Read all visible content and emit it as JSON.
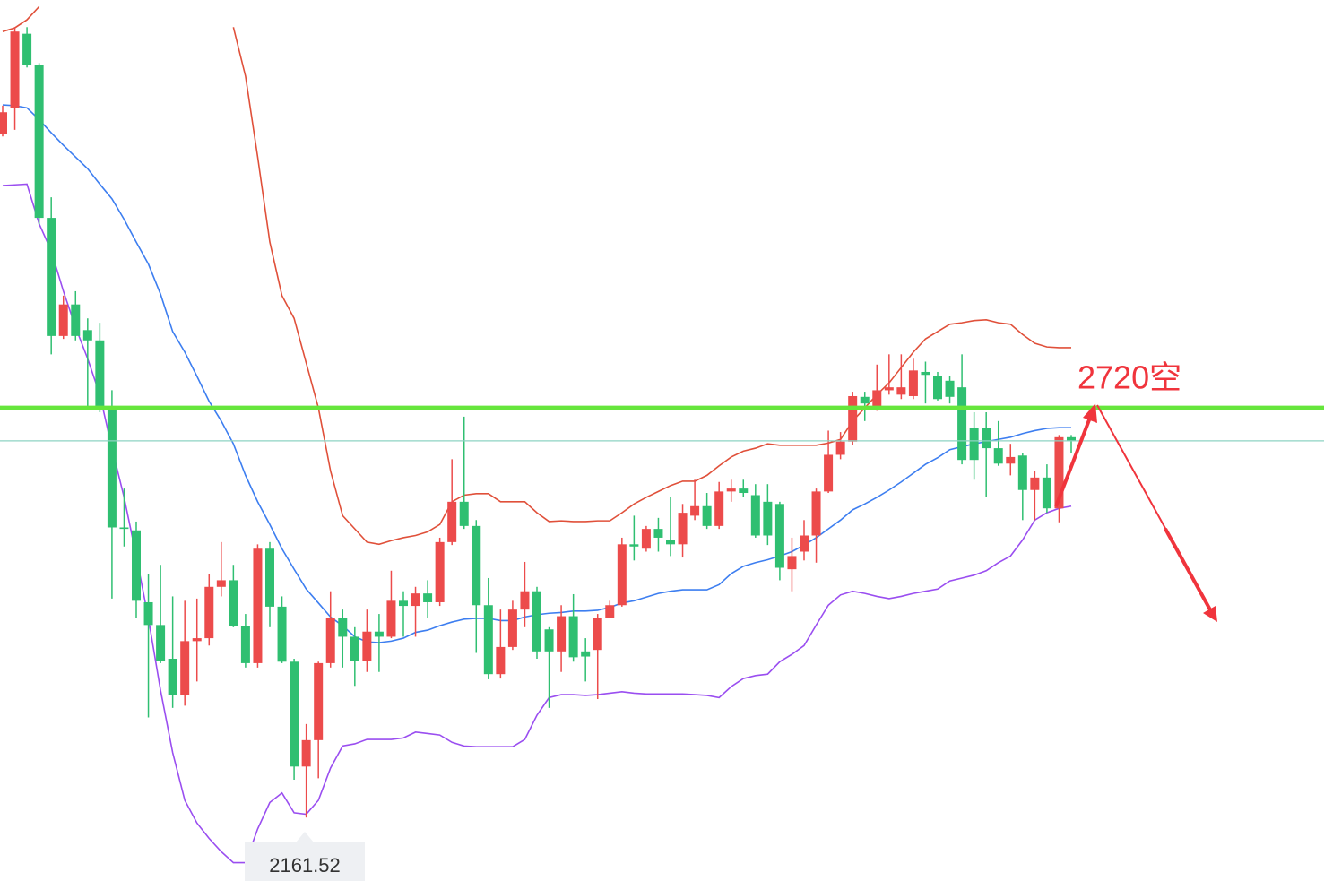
{
  "chart_data": {
    "type": "candlestick",
    "ylim": [
      2075,
      3276
    ],
    "up_color": "#ec4b4b",
    "down_color": "#2fbf71",
    "open": [
      3093,
      3129,
      3230,
      3188,
      2979,
      2818,
      2861,
      2826,
      2812,
      2720,
      2557,
      2553,
      2455,
      2424,
      2378,
      2329,
      2402,
      2406,
      2476,
      2485,
      2423,
      2372,
      2528,
      2449,
      2374,
      2231,
      2267,
      2372,
      2433,
      2408,
      2375,
      2415,
      2408,
      2457,
      2450,
      2467,
      2455,
      2537,
      2592,
      2559,
      2451,
      2357,
      2394,
      2445,
      2470,
      2418,
      2388,
      2436,
      2388,
      2390,
      2433,
      2451,
      2534,
      2528,
      2555,
      2540,
      2534,
      2573,
      2586,
      2559,
      2606,
      2610,
      2601,
      2592,
      2589,
      2500,
      2524,
      2546,
      2606,
      2656,
      2674,
      2735,
      2720,
      2744,
      2738,
      2736,
      2769,
      2763,
      2757,
      2748,
      2692,
      2692,
      2665,
      2644,
      2655,
      2608,
      2625,
      2583,
      2680
    ],
    "high": [
      3132,
      3239,
      3239,
      3190,
      3007,
      2873,
      2879,
      2842,
      2836,
      2744,
      2610,
      2565,
      2494,
      2506,
      2463,
      2457,
      2460,
      2494,
      2537,
      2506,
      2439,
      2534,
      2537,
      2463,
      2378,
      2289,
      2374,
      2470,
      2445,
      2421,
      2445,
      2439,
      2498,
      2470,
      2476,
      2485,
      2543,
      2650,
      2708,
      2567,
      2488,
      2445,
      2457,
      2510,
      2476,
      2421,
      2451,
      2466,
      2406,
      2439,
      2457,
      2543,
      2573,
      2559,
      2570,
      2598,
      2589,
      2622,
      2604,
      2619,
      2622,
      2622,
      2616,
      2616,
      2592,
      2543,
      2567,
      2610,
      2689,
      2687,
      2742,
      2742,
      2779,
      2793,
      2793,
      2787,
      2783,
      2769,
      2763,
      2793,
      2714,
      2714,
      2702,
      2671,
      2659,
      2634,
      2643,
      2683,
      2683
    ],
    "low": [
      3090,
      3099,
      3184,
      2970,
      2793,
      2814,
      2812,
      2720,
      2714,
      2460,
      2531,
      2433,
      2298,
      2372,
      2311,
      2314,
      2347,
      2396,
      2463,
      2421,
      2366,
      2366,
      2421,
      2372,
      2213,
      2161.52,
      2215,
      2366,
      2366,
      2341,
      2360,
      2360,
      2406,
      2408,
      2408,
      2433,
      2450,
      2533,
      2555,
      2386,
      2350,
      2351,
      2390,
      2421,
      2378,
      2311,
      2360,
      2374,
      2347,
      2323,
      2433,
      2449,
      2512,
      2524,
      2524,
      2518,
      2516,
      2567,
      2555,
      2555,
      2592,
      2598,
      2543,
      2533,
      2485,
      2470,
      2512,
      2509,
      2604,
      2650,
      2669,
      2702,
      2716,
      2738,
      2732,
      2732,
      2726,
      2730,
      2726,
      2643,
      2622,
      2598,
      2641,
      2628,
      2567,
      2567,
      2577,
      2564,
      2659
    ],
    "close": [
      3123,
      3233,
      3188,
      2979,
      2818,
      2861,
      2818,
      2812,
      2720,
      2557,
      2555,
      2457,
      2424,
      2375,
      2329,
      2402,
      2406,
      2476,
      2485,
      2423,
      2372,
      2528,
      2449,
      2374,
      2231,
      2267,
      2372,
      2433,
      2408,
      2375,
      2415,
      2408,
      2457,
      2450,
      2467,
      2455,
      2537,
      2592,
      2559,
      2451,
      2357,
      2394,
      2445,
      2470,
      2388,
      2388,
      2436,
      2380,
      2381,
      2433,
      2451,
      2534,
      2531,
      2555,
      2543,
      2534,
      2577,
      2586,
      2559,
      2606,
      2610,
      2604,
      2546,
      2546,
      2502,
      2518,
      2546,
      2606,
      2656,
      2674,
      2736,
      2726,
      2744,
      2748,
      2748,
      2771,
      2765,
      2732,
      2735,
      2649,
      2649,
      2665,
      2644,
      2653,
      2608,
      2625,
      2583,
      2680,
      2675
    ],
    "bands": [
      {
        "color": "#e0503a",
        "values": [
          3233,
          3238,
          3249,
          3267,
          null,
          null,
          null,
          null,
          null,
          null,
          null,
          null,
          null,
          null,
          null,
          null,
          null,
          null,
          null,
          3239,
          3172,
          3062,
          2946,
          2873,
          2842,
          2781,
          2720,
          2634,
          2573,
          2555,
          2537,
          2534,
          2539,
          2543,
          2546,
          2551,
          2561,
          2592,
          2601,
          2603,
          2603,
          2592,
          2592,
          2592,
          2577,
          2565,
          2566,
          2565,
          2565,
          2566,
          2566,
          2577,
          2589,
          2598,
          2606,
          2614,
          2620,
          2620,
          2628,
          2641,
          2653,
          2661,
          2665,
          2671,
          2669,
          2669,
          2669,
          2669,
          2672,
          2677,
          2702,
          2720,
          2738,
          2754,
          2775,
          2796,
          2814,
          2824,
          2834,
          2836,
          2839,
          2840,
          2836,
          2834,
          2820,
          2808,
          2803,
          2802,
          2802
        ]
      },
      {
        "color": "#3d7ef0",
        "values": [
          3133,
          3132,
          3129,
          3113,
          3095,
          3078,
          3062,
          3046,
          3025,
          3005,
          2977,
          2946,
          2916,
          2875,
          2824,
          2796,
          2763,
          2729,
          2702,
          2671,
          2628,
          2592,
          2561,
          2528,
          2500,
          2473,
          2454,
          2435,
          2423,
          2408,
          2401,
          2400,
          2402,
          2406,
          2414,
          2417,
          2423,
          2428,
          2432,
          2433,
          2433,
          2430,
          2430,
          2435,
          2438,
          2440,
          2441,
          2443,
          2443,
          2444,
          2448,
          2454,
          2457,
          2462,
          2467,
          2470,
          2472,
          2472,
          2472,
          2479,
          2494,
          2504,
          2509,
          2513,
          2518,
          2524,
          2533,
          2543,
          2555,
          2567,
          2581,
          2589,
          2598,
          2608,
          2619,
          2631,
          2643,
          2652,
          2663,
          2667,
          2671,
          2674,
          2677,
          2680,
          2685,
          2689,
          2692,
          2693,
          2693
        ]
      },
      {
        "color": "#9a4ef0",
        "values": [
          3023,
          3024,
          3025,
          2971,
          2934,
          2879,
          2830,
          2787,
          2738,
          2665,
          2598,
          2518,
          2433,
          2335,
          2250,
          2185,
          2154,
          2133,
          2115,
          2100,
          2100,
          2146,
          2182,
          2195,
          2168,
          2166,
          2185,
          2229,
          2259,
          2262,
          2268,
          2268,
          2268,
          2270,
          2278,
          2276,
          2274,
          2264,
          2259,
          2258,
          2258,
          2258,
          2258,
          2268,
          2301,
          2325,
          2329,
          2329,
          2328,
          2329,
          2331,
          2333,
          2331,
          2330,
          2330,
          2330,
          2330,
          2329,
          2328,
          2325,
          2340,
          2351,
          2355,
          2357,
          2374,
          2384,
          2396,
          2424,
          2451,
          2465,
          2470,
          2467,
          2463,
          2460,
          2463,
          2467,
          2470,
          2473,
          2484,
          2488,
          2492,
          2498,
          2509,
          2518,
          2540,
          2567,
          2577,
          2583,
          2586
        ]
      }
    ],
    "level": {
      "value": 2720,
      "color": "#66e63c"
    },
    "price_line": {
      "value": 2675,
      "color": "#8ed3c3"
    },
    "annotation": "2720空",
    "annotation_color": "#f0343c"
  }
}
